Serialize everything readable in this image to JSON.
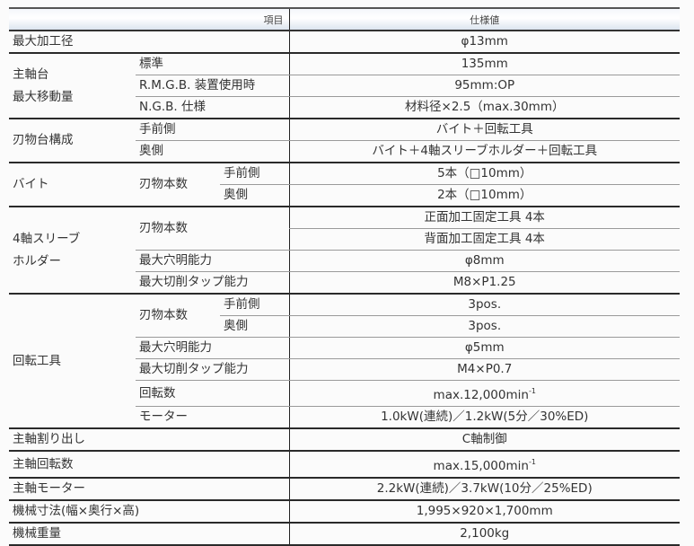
{
  "header": {
    "item": "項目",
    "value": "仕様値"
  },
  "specs": [
    {
      "label": "最大加工径",
      "value": "φ13mm"
    },
    {
      "label": "主軸台\n最大移動量",
      "items": [
        {
          "label": "標準",
          "value": "135mm"
        },
        {
          "label": "R.M.G.B. 装置使用時",
          "value": "95mm:OP"
        },
        {
          "label": "N.G.B. 仕様",
          "value": "材料径×2.5（max.30mm）"
        }
      ]
    },
    {
      "label": "刃物台構成",
      "items": [
        {
          "label": "手前側",
          "value": "バイト＋回転工具"
        },
        {
          "label": "奥側",
          "value": "バイト＋4軸スリーブホルダー＋回転工具"
        }
      ]
    },
    {
      "label": "バイト",
      "items": [
        {
          "label": "刃物本数",
          "items": [
            {
              "label": "手前側",
              "value": "5本（□10mm）"
            },
            {
              "label": "奥側",
              "value": "2本（□10mm）"
            }
          ]
        }
      ]
    },
    {
      "label": "4軸スリーブ\nホルダー",
      "items": [
        {
          "label": "刃物本数",
          "values": [
            "正面加工固定工具 4本",
            "背面加工固定工具 4本"
          ]
        },
        {
          "label": "最大穴明能力",
          "value": "φ8mm"
        },
        {
          "label": "最大切削タップ能力",
          "value": "M8×P1.25"
        }
      ]
    },
    {
      "label": "回転工具",
      "items": [
        {
          "label": "刃物本数",
          "items": [
            {
              "label": "手前側",
              "value": "3pos."
            },
            {
              "label": "奥側",
              "value": "3pos."
            }
          ]
        },
        {
          "label": "最大穴明能力",
          "value": "φ5mm"
        },
        {
          "label": "最大切削タップ能力",
          "value": "M4×P0.7"
        },
        {
          "label": "回転数",
          "value": "max.12,000min",
          "sup": "-1"
        },
        {
          "label": "モーター",
          "value": "1.0kW(連続)／1.2kW(5分／30%ED)"
        }
      ]
    },
    {
      "label": "主軸割り出し",
      "value": "C軸制御"
    },
    {
      "label": "主軸回転数",
      "value": "max.15,000min",
      "sup": "-1"
    },
    {
      "label": "主軸モーター",
      "value": "2.2kW(連続)／3.7kW(10分／25%ED)"
    },
    {
      "label": "機械寸法(幅×奥行×高)",
      "value": "1,995×920×1,700mm"
    },
    {
      "label": "機械重量",
      "value": "2,100kg"
    }
  ]
}
